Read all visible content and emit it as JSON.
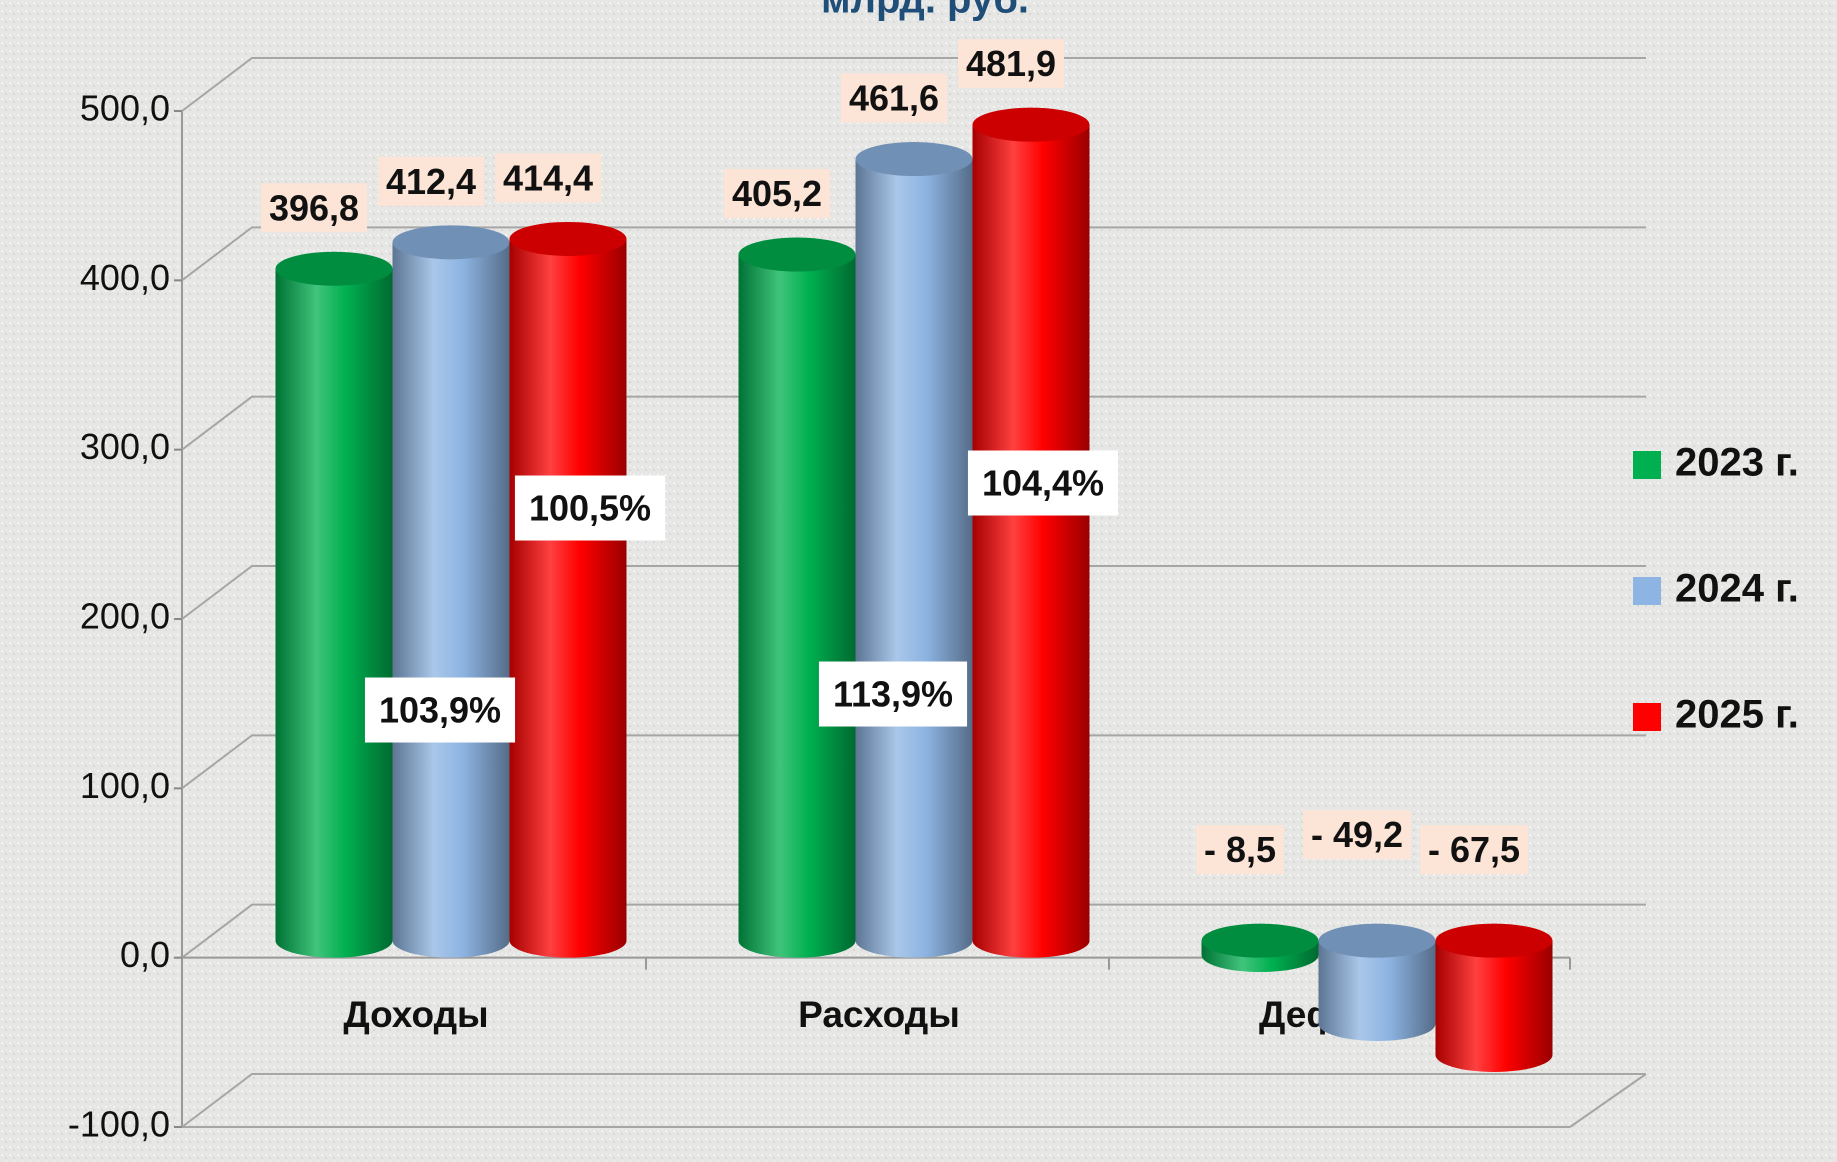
{
  "chart_data": {
    "type": "bar3d",
    "title": "млрд. руб.",
    "categories": [
      "Доходы",
      "Расходы",
      "Дефицит"
    ],
    "series": [
      {
        "name": "2023 г.",
        "color": "#00b050",
        "values": [
          396.8,
          405.2,
          -8.5
        ],
        "value_labels": [
          "396,8",
          "405,2",
          "- 8,5"
        ]
      },
      {
        "name": "2024 г.",
        "color": "#8db4e2",
        "values": [
          412.4,
          461.6,
          -49.2
        ],
        "value_labels": [
          "412,4",
          "461,6",
          "- 49,2"
        ]
      },
      {
        "name": "2025 г.",
        "color": "#ff0000",
        "values": [
          414.4,
          481.9,
          -67.5
        ],
        "value_labels": [
          "414,4",
          "481,9",
          "- 67,5"
        ]
      }
    ],
    "annotations": [
      "103,9%",
      "100,5%",
      "113,9%",
      "104,4%"
    ],
    "ylim": [
      -100,
      500
    ],
    "yticks": [
      {
        "value": -100,
        "label": "-100,0"
      },
      {
        "value": 0,
        "label": "0,0"
      },
      {
        "value": 100,
        "label": "100,0"
      },
      {
        "value": 200,
        "label": "200,0"
      },
      {
        "value": 300,
        "label": "300,0"
      },
      {
        "value": 400,
        "label": "400,0"
      },
      {
        "value": 500,
        "label": "500,0"
      }
    ],
    "grid": true,
    "legend": "right"
  }
}
